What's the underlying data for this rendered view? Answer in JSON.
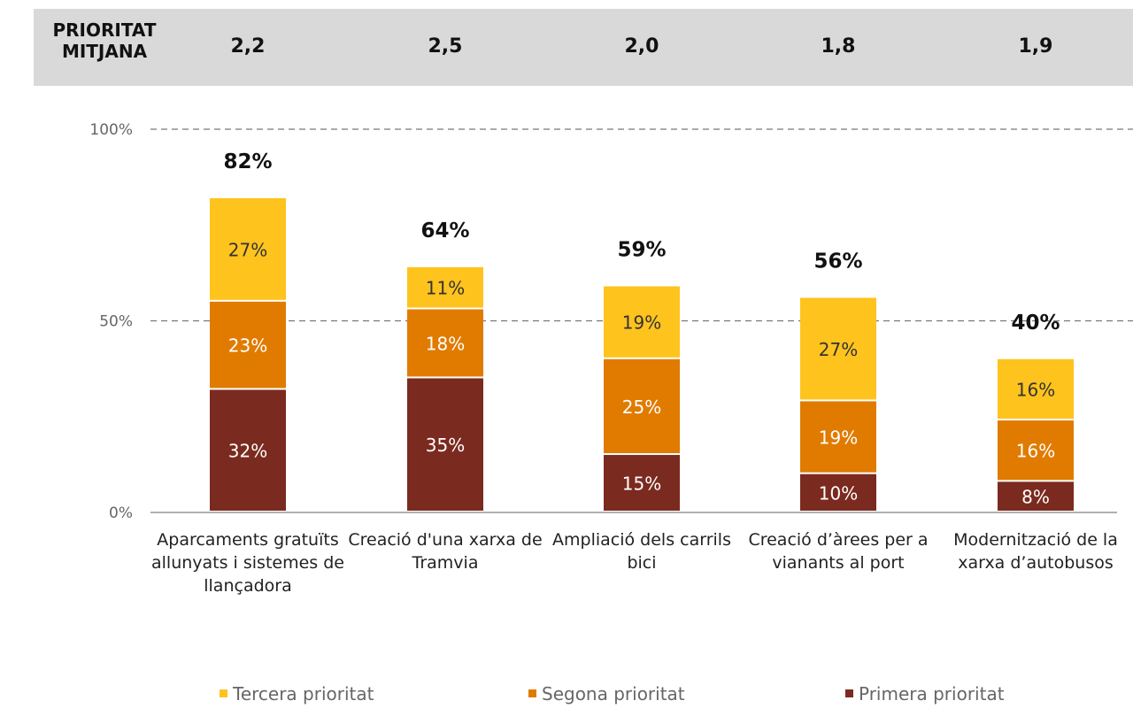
{
  "header": {
    "label_line1": "PRIORITAT",
    "label_line2": "MITJANA",
    "values": [
      "2,2",
      "2,5",
      "2,0",
      "1,8",
      "1,9"
    ]
  },
  "colors": {
    "tercera": "#ffc31e",
    "segona": "#e07b00",
    "primera": "#7b2a1f",
    "grid": "#777777",
    "header_band": "#d9d9d9"
  },
  "chart_data": {
    "type": "bar",
    "stacked": true,
    "categories": [
      "Aparcaments gratuïts allunyats i sistemes de llançadora",
      "Creació d'una xarxa de Tramvia",
      "Ampliació dels carrils bici",
      "Creació d’àrees per a vianants al port",
      "Modernització de la xarxa d’autobusos"
    ],
    "series": [
      {
        "name": "Primera prioritat",
        "color": "#7b2a1f",
        "values": [
          32,
          35,
          15,
          10,
          8
        ],
        "labels": [
          "32%",
          "35%",
          "15%",
          "10%",
          "8%"
        ]
      },
      {
        "name": "Segona prioritat",
        "color": "#e07b00",
        "values": [
          23,
          18,
          25,
          19,
          16
        ],
        "labels": [
          "23%",
          "18%",
          "25%",
          "19%",
          "16%"
        ]
      },
      {
        "name": "Tercera prioritat",
        "color": "#ffc31e",
        "values": [
          27,
          11,
          19,
          27,
          16
        ],
        "labels": [
          "27%",
          "11%",
          "19%",
          "27%",
          "16%"
        ]
      }
    ],
    "totals": [
      82,
      64,
      59,
      56,
      40
    ],
    "total_labels": [
      "82%",
      "64%",
      "59%",
      "56%",
      "40%"
    ],
    "yticks": [
      "0%",
      "50%",
      "100%"
    ],
    "ylim": [
      0,
      100
    ],
    "grid": "dashed at 50% and 100%",
    "legend_position": "bottom",
    "legend": [
      "Tercera prioritat",
      "Segona prioritat",
      "Primera prioritat"
    ]
  }
}
